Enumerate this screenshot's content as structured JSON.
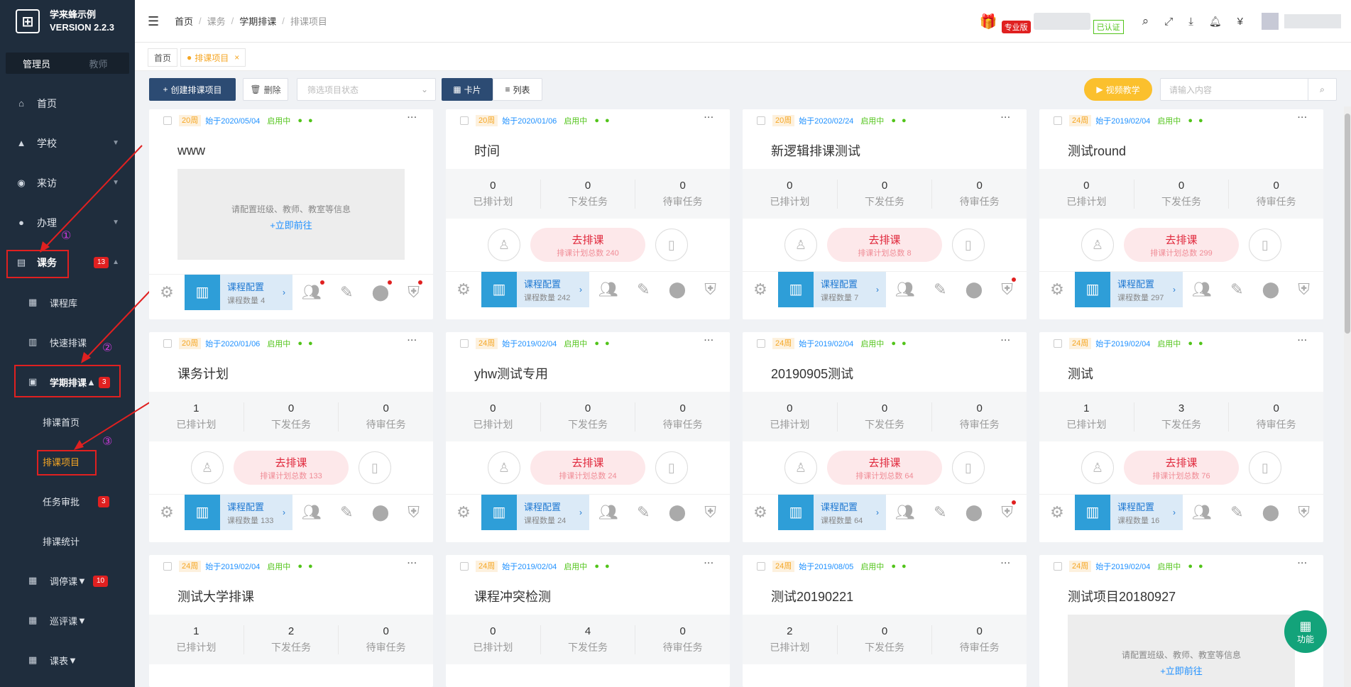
{
  "app": {
    "name": "学来蜂示例",
    "version": "VERSION 2.2.3"
  },
  "roles": {
    "active": "管理员",
    "inactive": "教师"
  },
  "sidebar": {
    "items": [
      {
        "label": "首页",
        "icon": "home-icon"
      },
      {
        "label": "学校",
        "icon": "school-icon"
      },
      {
        "label": "来访",
        "icon": "visit-icon"
      },
      {
        "label": "办理",
        "icon": "user-icon"
      },
      {
        "label": "课务",
        "icon": "course-icon",
        "badge": "13"
      }
    ],
    "course_sub": [
      {
        "label": "课程库"
      },
      {
        "label": "快速排课"
      },
      {
        "label": "学期排课",
        "badge": "3"
      }
    ],
    "term_sub": [
      {
        "label": "排课首页"
      },
      {
        "label": "排课项目"
      },
      {
        "label": "任务审批",
        "badge": "3"
      },
      {
        "label": "排课统计"
      }
    ],
    "bottom": [
      {
        "label": "调停课",
        "badge": "10"
      },
      {
        "label": "巡评课"
      },
      {
        "label": "课表"
      }
    ],
    "markers": [
      "①",
      "②",
      "③"
    ]
  },
  "header": {
    "breadcrumb": [
      "首页",
      "课务",
      "学期排课",
      "排课项目"
    ],
    "pro_badge": "专业版",
    "verified": "已认证",
    "currency": "¥"
  },
  "tabs": {
    "home": "首页",
    "current": "排课项目",
    "close": "×"
  },
  "toolbar": {
    "create": "创建排课项目",
    "delete": "删除",
    "filter_placeholder": "筛选项目状态",
    "view_card": "卡片",
    "view_list": "列表",
    "video": "视频教学",
    "search_placeholder": "请输入内容"
  },
  "card_labels": {
    "planned": "已排计划",
    "issued": "下发任务",
    "pending": "待审任务",
    "go_schedule": "去排课",
    "plan_total": "排课计划总数",
    "config": "课程配置",
    "config_count": "课程数量",
    "empty_hint": "请配置班级、教师、教室等信息",
    "empty_link": "+立即前往",
    "status": "启用中"
  },
  "cards": [
    {
      "weeks": "20周",
      "start": "始于2020/05/04",
      "title": "www",
      "empty": true,
      "courses": "4"
    },
    {
      "weeks": "20周",
      "start": "始于2020/01/06",
      "title": "时间",
      "planned": "0",
      "issued": "0",
      "pending": "0",
      "plans": "240",
      "courses": "242"
    },
    {
      "weeks": "20周",
      "start": "始于2020/02/24",
      "title": "新逻辑排课测试",
      "planned": "0",
      "issued": "0",
      "pending": "0",
      "plans": "8",
      "courses": "7"
    },
    {
      "weeks": "24周",
      "start": "始于2019/02/04",
      "title": "测试round",
      "planned": "0",
      "issued": "0",
      "pending": "0",
      "plans": "299",
      "courses": "297"
    },
    {
      "weeks": "20周",
      "start": "始于2020/01/06",
      "title": "课务计划",
      "planned": "1",
      "issued": "0",
      "pending": "0",
      "plans": "133",
      "courses": "133"
    },
    {
      "weeks": "24周",
      "start": "始于2019/02/04",
      "title": "yhw测试专用",
      "planned": "0",
      "issued": "0",
      "pending": "0",
      "plans": "24",
      "courses": "24"
    },
    {
      "weeks": "24周",
      "start": "始于2019/02/04",
      "title": "20190905测试",
      "planned": "0",
      "issued": "0",
      "pending": "0",
      "plans": "64",
      "courses": "64"
    },
    {
      "weeks": "24周",
      "start": "始于2019/02/04",
      "title": "测试",
      "planned": "1",
      "issued": "3",
      "pending": "0",
      "plans": "76",
      "courses": "16"
    },
    {
      "weeks": "24周",
      "start": "始于2019/02/04",
      "title": "测试大学排课",
      "planned": "1",
      "issued": "2",
      "pending": "0"
    },
    {
      "weeks": "24周",
      "start": "始于2019/02/04",
      "title": "课程冲突检测",
      "planned": "0",
      "issued": "4",
      "pending": "0"
    },
    {
      "weeks": "24周",
      "start": "始于2019/08/05",
      "title": "测试20190221",
      "planned": "2",
      "issued": "0",
      "pending": "0"
    },
    {
      "weeks": "24周",
      "start": "始于2019/02/04",
      "title": "测试项目20180927",
      "empty": true
    }
  ],
  "fab": {
    "label": "功能"
  }
}
